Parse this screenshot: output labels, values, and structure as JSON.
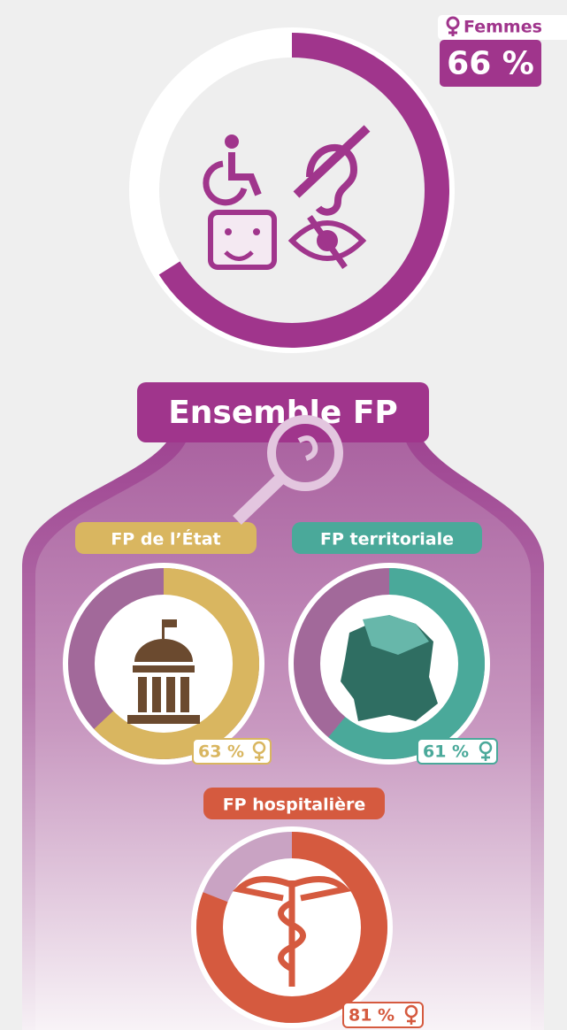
{
  "chart_data": [
    {
      "type": "donut",
      "title": "Ensemble FP",
      "legend": "Femmes",
      "values": [
        66
      ],
      "value_labels": [
        "66 %"
      ],
      "color": "#a0358c"
    },
    {
      "type": "donut",
      "title": "FP de l’État",
      "values": [
        63
      ],
      "value_labels": [
        "63 %"
      ],
      "color": "#d9b660"
    },
    {
      "type": "donut",
      "title": "FP territoriale",
      "values": [
        61
      ],
      "value_labels": [
        "61 %"
      ],
      "color": "#4aa99a"
    },
    {
      "type": "donut",
      "title": "FP hospitalière",
      "values": [
        81
      ],
      "value_labels": [
        "81 %"
      ],
      "color": "#d55a3f"
    }
  ]
}
